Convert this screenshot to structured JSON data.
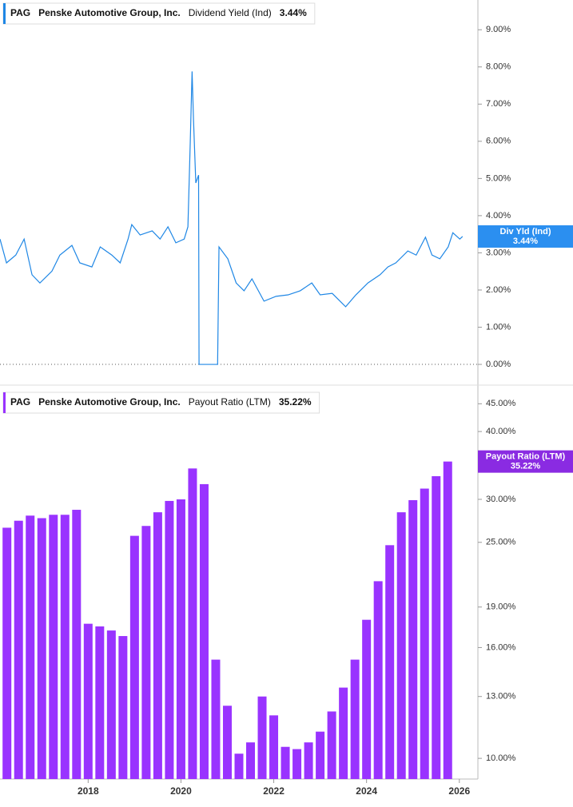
{
  "chart_data": [
    {
      "type": "line",
      "ticker": "PAG",
      "company": "Penske Automotive Group, Inc.",
      "x": [
        2016.1,
        2016.24,
        2016.44,
        2016.62,
        2016.79,
        2016.96,
        2017.22,
        2017.39,
        2017.65,
        2017.82,
        2018.08,
        2018.26,
        2018.51,
        2018.69,
        2018.86,
        2018.94,
        2019.12,
        2019.38,
        2019.55,
        2019.72,
        2019.89,
        2020.07,
        2020.15,
        2020.2,
        2020.24,
        2020.27,
        2020.32,
        2020.38,
        2020.39,
        2020.79,
        2020.82,
        2021.01,
        2021.19,
        2021.36,
        2021.53,
        2021.79,
        2022.05,
        2022.31,
        2022.57,
        2022.82,
        2023,
        2023.26,
        2023.55,
        2023.77,
        2024.03,
        2024.29,
        2024.46,
        2024.63,
        2024.89,
        2025.07,
        2025.27,
        2025.41,
        2025.58,
        2025.76,
        2025.86,
        2026.01,
        2026.07
      ],
      "series": [
        {
          "name": "Dividend Yield (Ind)",
          "color": "#1f87e5",
          "values": [
            3.37,
            2.73,
            2.94,
            3.37,
            2.41,
            2.19,
            2.51,
            2.94,
            3.2,
            2.73,
            2.62,
            3.16,
            2.94,
            2.73,
            3.37,
            3.76,
            3.48,
            3.59,
            3.37,
            3.7,
            3.27,
            3.37,
            3.7,
            5.95,
            7.88,
            6.6,
            4.88,
            5.09,
            0,
            0,
            3.16,
            2.84,
            2.19,
            1.98,
            2.3,
            1.7,
            1.83,
            1.87,
            1.98,
            2.19,
            1.87,
            1.91,
            1.55,
            1.87,
            2.19,
            2.41,
            2.62,
            2.73,
            3.05,
            2.94,
            3.42,
            2.94,
            2.84,
            3.16,
            3.54,
            3.37,
            3.44
          ]
        }
      ],
      "tag": {
        "name": "Div Yld (Ind)",
        "value": 3.44,
        "label": "3.44%"
      },
      "xlim": [
        2016.1,
        2026.4
      ],
      "ylim": [
        -0.3,
        9.8
      ],
      "yticks": [
        {
          "value": 0,
          "label": "0.00%"
        },
        {
          "value": 1,
          "label": "1.00%"
        },
        {
          "value": 2,
          "label": "2.00%"
        },
        {
          "value": 3,
          "label": "3.00%"
        },
        {
          "value": 4,
          "label": "4.00%"
        },
        {
          "value": 5,
          "label": "5.00%"
        },
        {
          "value": 6,
          "label": "6.00%"
        },
        {
          "value": 7,
          "label": "7.00%"
        },
        {
          "value": 8,
          "label": "8.00%"
        },
        {
          "value": 9,
          "label": "9.00%"
        }
      ],
      "zero_line": true
    },
    {
      "type": "bar",
      "ticker": "PAG",
      "company": "Penske Automotive Group, Inc.",
      "x": [
        2016.25,
        2016.5,
        2016.75,
        2017,
        2017.25,
        2017.5,
        2017.75,
        2018,
        2018.25,
        2018.5,
        2018.75,
        2019,
        2019.25,
        2019.5,
        2019.75,
        2020,
        2020.25,
        2020.5,
        2020.75,
        2021,
        2021.25,
        2021.5,
        2021.75,
        2022,
        2022.25,
        2022.5,
        2022.75,
        2023,
        2023.25,
        2023.5,
        2023.75,
        2024,
        2024.25,
        2024.5,
        2024.75,
        2025,
        2025.25,
        2025.5,
        2025.75
      ],
      "series": [
        {
          "name": "Payout Ratio (LTM)",
          "color": "#9933ff",
          "values": [
            26.6,
            27.4,
            28.0,
            27.7,
            28.1,
            28.1,
            28.7,
            17.7,
            17.5,
            17.2,
            16.8,
            25.7,
            26.8,
            28.4,
            29.8,
            30.0,
            34.2,
            32.0,
            15.2,
            12.5,
            10.2,
            10.7,
            13.0,
            12.0,
            10.5,
            10.4,
            10.7,
            11.2,
            12.2,
            13.5,
            15.2,
            18.0,
            21.2,
            24.7,
            28.4,
            29.9,
            31.4,
            33.1,
            35.22
          ]
        }
      ],
      "tag": {
        "name": "Payout Ratio (LTM)",
        "value": 35.22,
        "label": "35.22%"
      },
      "xlim": [
        2016.1,
        2026.4
      ],
      "xticks": [
        2018,
        2020,
        2022,
        2024,
        2026
      ],
      "ylim": [
        9.16,
        47.4
      ],
      "log": true,
      "yticks": [
        {
          "value": 10,
          "label": "10.00%"
        },
        {
          "value": 13,
          "label": "13.00%"
        },
        {
          "value": 16,
          "label": "16.00%"
        },
        {
          "value": 19,
          "label": "19.00%"
        },
        {
          "value": 25,
          "label": "25.00%"
        },
        {
          "value": 30,
          "label": "30.00%"
        },
        {
          "value": 40,
          "label": "40.00%"
        },
        {
          "value": 45,
          "label": "45.00%"
        }
      ]
    }
  ]
}
